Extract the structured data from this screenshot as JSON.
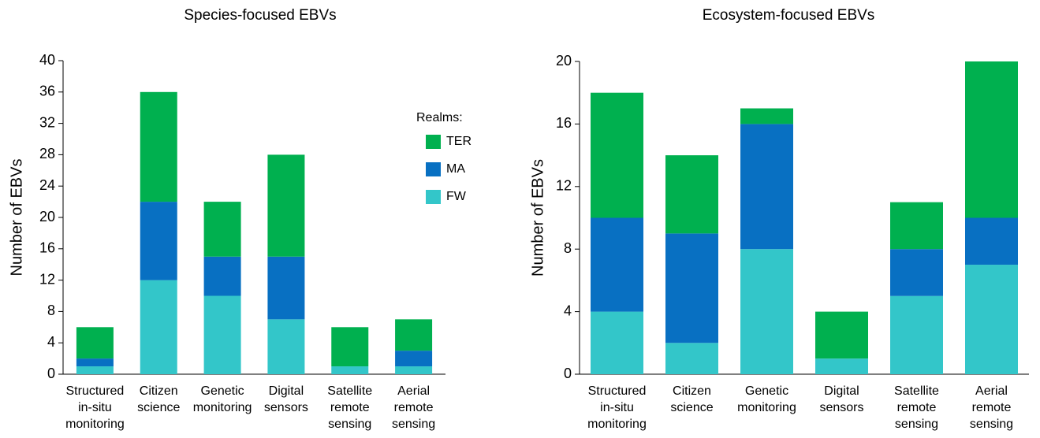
{
  "chart_data": [
    {
      "type": "bar",
      "stacked": true,
      "title": "Species-focused EBVs",
      "y_label": "Number of EBVs",
      "legend_title": "Realms:",
      "categories": [
        [
          "Structured",
          "in-situ",
          "monitoring"
        ],
        [
          "Citizen",
          "science"
        ],
        [
          "Genetic",
          "monitoring"
        ],
        [
          "Digital",
          "sensors"
        ],
        [
          "Satellite",
          "remote",
          "sensing"
        ],
        [
          "Aerial",
          "remote",
          "sensing"
        ]
      ],
      "series": [
        {
          "name": "FW",
          "color": "#33c6c9",
          "values": [
            1,
            12,
            10,
            7,
            1,
            1
          ]
        },
        {
          "name": "MA",
          "color": "#0870c2",
          "values": [
            1,
            10,
            5,
            8,
            0,
            2
          ]
        },
        {
          "name": "TER",
          "color": "#00b04f",
          "values": [
            4,
            14,
            7,
            13,
            5,
            4
          ]
        }
      ],
      "ylim": [
        0,
        40
      ],
      "yticks": [
        0,
        4,
        8,
        12,
        16,
        20,
        24,
        28,
        32,
        36,
        40
      ]
    },
    {
      "type": "bar",
      "stacked": true,
      "title": "Ecosystem-focused EBVs",
      "y_label": "Number of EBVs",
      "categories": [
        [
          "Structured",
          "in-situ",
          "monitoring"
        ],
        [
          "Citizen",
          "science"
        ],
        [
          "Genetic",
          "monitoring"
        ],
        [
          "Digital",
          "sensors"
        ],
        [
          "Satellite",
          "remote",
          "sensing"
        ],
        [
          "Aerial",
          "remote",
          "sensing"
        ]
      ],
      "series": [
        {
          "name": "FW",
          "color": "#33c6c9",
          "values": [
            4,
            2,
            8,
            1,
            5,
            7
          ]
        },
        {
          "name": "MA",
          "color": "#0870c2",
          "values": [
            6,
            7,
            8,
            0,
            3,
            3
          ]
        },
        {
          "name": "TER",
          "color": "#00b04f",
          "values": [
            8,
            5,
            1,
            3,
            3,
            10
          ]
        }
      ],
      "ylim": [
        0,
        20
      ],
      "yticks": [
        0,
        4,
        8,
        12,
        16,
        20
      ]
    }
  ]
}
